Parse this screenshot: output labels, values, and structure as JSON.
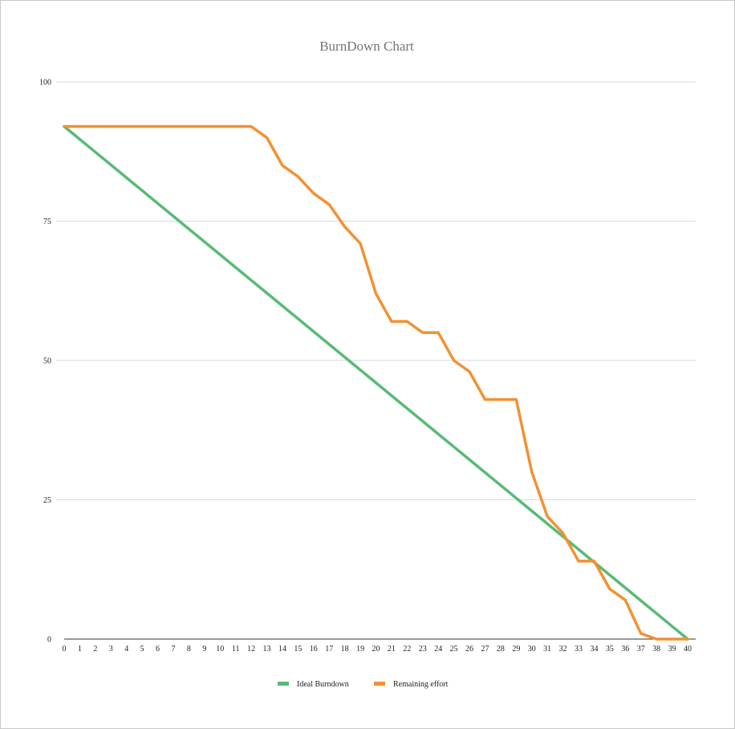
{
  "chart_data": {
    "type": "line",
    "title": "BurnDown Chart",
    "xlabel": "",
    "ylabel": "",
    "ylim": [
      0,
      100
    ],
    "yticks": [
      0,
      25,
      50,
      75,
      100
    ],
    "x": [
      0,
      1,
      2,
      3,
      4,
      5,
      6,
      7,
      8,
      9,
      10,
      11,
      12,
      13,
      14,
      15,
      16,
      17,
      18,
      19,
      20,
      21,
      22,
      23,
      24,
      25,
      26,
      27,
      28,
      29,
      30,
      31,
      32,
      33,
      34,
      35,
      36,
      37,
      38,
      39,
      40
    ],
    "grid": true,
    "legend_position": "bottom",
    "series": [
      {
        "name": "Ideal Burndown",
        "color": "#57bb75",
        "values": [
          92,
          89.7,
          87.4,
          85.1,
          82.8,
          80.5,
          78.2,
          75.9,
          73.6,
          71.3,
          69,
          66.7,
          64.4,
          62.1,
          59.8,
          57.5,
          55.2,
          52.9,
          50.6,
          48.3,
          46,
          43.7,
          41.4,
          39.1,
          36.8,
          34.5,
          32.2,
          29.9,
          27.6,
          25.3,
          23,
          20.7,
          18.4,
          16.1,
          13.8,
          11.5,
          9.2,
          6.9,
          4.6,
          2.3,
          0
        ]
      },
      {
        "name": "Remaining effort",
        "color": "#f29132",
        "values": [
          92,
          92,
          92,
          92,
          92,
          92,
          92,
          92,
          92,
          92,
          92,
          92,
          92,
          90,
          85,
          83,
          80,
          78,
          74,
          71,
          62,
          57,
          57,
          55,
          55,
          50,
          48,
          43,
          43,
          43,
          30,
          22,
          19,
          14,
          14,
          9,
          7,
          1,
          0,
          0,
          0
        ]
      }
    ]
  }
}
